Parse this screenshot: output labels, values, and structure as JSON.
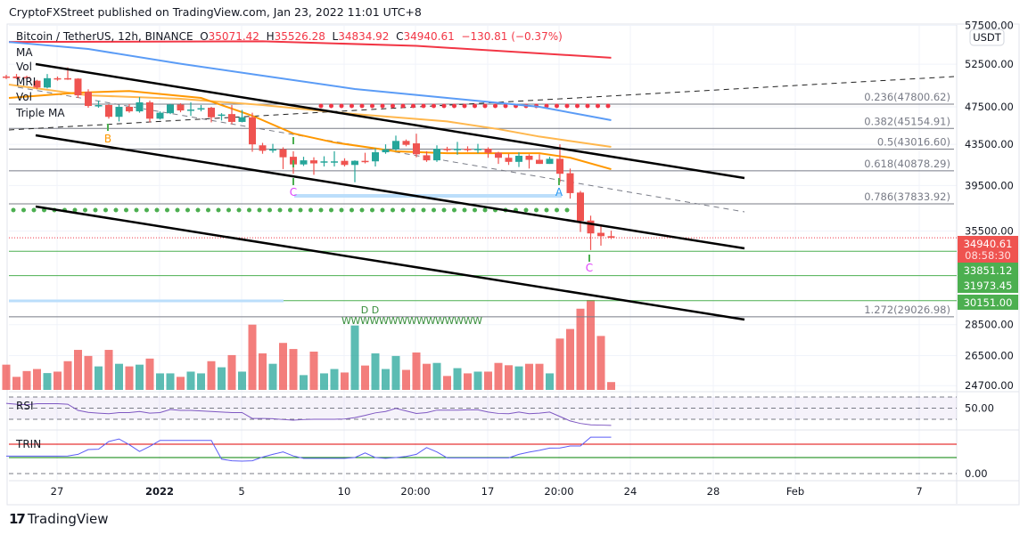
{
  "header": {
    "published": "CryptoFXStreet published on TradingView.com, Jan 23, 2022 11:01 UTC+8",
    "symbol": "Bitcoin / TetherUS, 12h, BINANCE",
    "open_label": "O",
    "open": "35071.42",
    "high_label": "H",
    "high": "35526.28",
    "low_label": "L",
    "low": "34834.92",
    "close_label": "C",
    "close": "34940.61",
    "change": "−130.81 (−0.37%)"
  },
  "legend": [
    "MA",
    "Vol",
    "MRI",
    "Vol",
    "Triple MA"
  ],
  "rsi_label": "RSI",
  "trin_label": "TRIN",
  "currency": "USDT",
  "footer": {
    "brand": "TradingView",
    "logo_icon": "tradingview-logo-icon"
  },
  "colors": {
    "up": "#26a69a",
    "down": "#ef5350",
    "ma_red": "#f23645",
    "ma_blue": "#5b9cf6",
    "ma_orange": "#ff9800",
    "ma_yellow": "#ffb74d",
    "rsi": "#7e57c2",
    "trin": "#5b5cf6",
    "level_green": "#4caf50"
  },
  "chart_data": {
    "type": "candlestick",
    "price_scale": "log",
    "y_ticks": [
      "57500.00",
      "52500.00",
      "47500.00",
      "43500.00",
      "39500.00",
      "35500.00",
      "28500.00",
      "26500.00",
      "24700.00"
    ],
    "y_tick_values": [
      57500,
      52500,
      47500,
      43500,
      39500,
      35500,
      28500,
      26500,
      24700
    ],
    "x_ticks": [
      "27",
      "2022",
      "5",
      "10",
      "20:00",
      "17",
      "20:00",
      "24",
      "28",
      "Feb",
      "7"
    ],
    "candles": [
      [
        51000,
        51200,
        50700,
        50850
      ],
      [
        51000,
        51300,
        50700,
        50800
      ],
      [
        50950,
        51100,
        50600,
        50850
      ],
      [
        50500,
        50600,
        49500,
        49700
      ],
      [
        49700,
        51300,
        49600,
        50800
      ],
      [
        50800,
        51000,
        50500,
        50750
      ],
      [
        50800,
        52100,
        50600,
        50700
      ],
      [
        50750,
        50800,
        48500,
        48800
      ],
      [
        49200,
        49500,
        47400,
        47600
      ],
      [
        47550,
        48200,
        47400,
        47700
      ],
      [
        47700,
        47800,
        46200,
        46400
      ],
      [
        46400,
        47700,
        45900,
        47500
      ],
      [
        47500,
        47800,
        46850,
        47000
      ],
      [
        47000,
        48600,
        46850,
        48000
      ],
      [
        48000,
        48200,
        45800,
        46200
      ],
      [
        46200,
        47000,
        46100,
        46850
      ],
      [
        46800,
        47850,
        46700,
        47750
      ],
      [
        47750,
        47900,
        46900,
        47100
      ],
      [
        47150,
        48000,
        46500,
        47200
      ],
      [
        47300,
        47700,
        47000,
        47350
      ],
      [
        47400,
        47500,
        45800,
        46350
      ],
      [
        46550,
        46800,
        46000,
        46650
      ],
      [
        46700,
        47700,
        45600,
        45850
      ],
      [
        45850,
        47150,
        45800,
        46350
      ],
      [
        46350,
        46850,
        42750,
        43500
      ],
      [
        43400,
        43650,
        42550,
        42850
      ],
      [
        42900,
        43550,
        42650,
        43000
      ],
      [
        43000,
        43200,
        41050,
        42200
      ],
      [
        42250,
        42800,
        40600,
        41500
      ],
      [
        41500,
        42250,
        41350,
        41900
      ],
      [
        41900,
        42200,
        40500,
        41600
      ],
      [
        41750,
        42300,
        41300,
        41800
      ],
      [
        41750,
        42800,
        41300,
        41800
      ],
      [
        41850,
        42100,
        41300,
        41450
      ],
      [
        41450,
        41900,
        39800,
        41850
      ],
      [
        41850,
        42650,
        41600,
        41800
      ],
      [
        41800,
        43100,
        41300,
        42700
      ],
      [
        42700,
        43500,
        42550,
        43000
      ],
      [
        43000,
        44400,
        42850,
        43850
      ],
      [
        43850,
        44000,
        43300,
        43450
      ],
      [
        43600,
        44600,
        42200,
        42500
      ],
      [
        42400,
        42800,
        41750,
        41900
      ],
      [
        41900,
        43400,
        41750,
        43050
      ],
      [
        43050,
        43250,
        42750,
        43000
      ],
      [
        43000,
        43750,
        42450,
        43050
      ],
      [
        43050,
        43300,
        42750,
        43000
      ],
      [
        43000,
        43550,
        42600,
        43050
      ],
      [
        43050,
        43200,
        42150,
        42650
      ],
      [
        42650,
        42750,
        41550,
        42150
      ],
      [
        42150,
        42550,
        41450,
        41750
      ],
      [
        41750,
        42700,
        41250,
        42350
      ],
      [
        42350,
        42500,
        41100,
        41950
      ],
      [
        41950,
        42500,
        41550,
        41550
      ],
      [
        41550,
        42250,
        41550,
        42050
      ],
      [
        42050,
        43500,
        39800,
        40600
      ],
      [
        40650,
        41100,
        38300,
        38800
      ],
      [
        38850,
        39000,
        35420,
        36350
      ],
      [
        36380,
        36800,
        33950,
        35300
      ],
      [
        35350,
        36050,
        34300,
        35071.42
      ],
      [
        35071.42,
        35526.28,
        34834.92,
        34940.61
      ]
    ],
    "candle_fields": [
      "open",
      "high",
      "low",
      "close"
    ],
    "volume_relative": [
      87,
      45,
      65,
      72,
      58,
      63,
      99,
      138,
      117,
      81,
      138,
      90,
      81,
      87,
      108,
      57,
      57,
      45,
      63,
      57,
      99,
      78,
      120,
      63,
      225,
      126,
      90,
      162,
      141,
      51,
      132,
      57,
      72,
      60,
      222,
      84,
      126,
      72,
      117,
      69,
      129,
      90,
      93,
      48,
      75,
      57,
      63,
      63,
      93,
      85,
      81,
      90,
      90,
      57,
      177,
      210,
      280,
      310,
      186,
      27
    ],
    "rsi": [
      58.6,
      57,
      56,
      58,
      58,
      58,
      57,
      46,
      42.4,
      41,
      40,
      42,
      42,
      44,
      41,
      42,
      47.5,
      46,
      46,
      45,
      44,
      43,
      42,
      42,
      31.5,
      31.5,
      31,
      29.5,
      28.5,
      29.5,
      30,
      30,
      30,
      30.5,
      33,
      37,
      41.5,
      44,
      49.5,
      45,
      40.5,
      42,
      46.5,
      46.5,
      46.5,
      47,
      47,
      43,
      40.5,
      40,
      43,
      40,
      41,
      43,
      35,
      27,
      22.5,
      20,
      19.5,
      19
    ],
    "rsi_levels": [
      70,
      50,
      30
    ],
    "rsi_tick": "50.00",
    "trin": [
      1.09,
      1.09,
      1.09,
      1.09,
      1.09,
      1.09,
      1.1,
      1.2,
      1.5,
      1.52,
      2.0,
      2.16,
      1.8,
      1.38,
      1.7,
      2.07,
      2.07,
      2.07,
      2.07,
      2.07,
      2.07,
      0.9,
      0.8,
      0.78,
      0.8,
      1.03,
      1.2,
      1.35,
      1.1,
      0.95,
      0.95,
      0.95,
      0.95,
      0.95,
      1.0,
      1.29,
      1.0,
      0.95,
      1.0,
      1.07,
      1.2,
      1.62,
      1.35,
      0.98,
      0.98,
      0.98,
      0.98,
      0.98,
      0.98,
      0.98,
      1.2,
      1.34,
      1.45,
      1.59,
      1.6,
      1.72,
      1.72,
      2.27,
      2.27,
      2.27
    ],
    "trin_tick": "0.00",
    "moving_averages": [
      {
        "color": "#f23645",
        "points": [
          [
            0,
            55300
          ],
          [
            25,
            55400
          ],
          [
            40,
            54800
          ],
          [
            59,
            53300
          ]
        ]
      },
      {
        "color": "#5b9cf6",
        "points": [
          [
            0,
            55300
          ],
          [
            8,
            54400
          ],
          [
            17,
            52550
          ],
          [
            25,
            51100
          ],
          [
            34,
            49530
          ],
          [
            43,
            48500
          ],
          [
            52,
            47500
          ],
          [
            59,
            46040
          ]
        ]
      },
      {
        "color": "#ffb74d",
        "points": [
          [
            0,
            50050
          ],
          [
            8,
            48800
          ],
          [
            17,
            48400
          ],
          [
            25,
            47700
          ],
          [
            34,
            46700
          ],
          [
            43,
            45900
          ],
          [
            48,
            45080
          ],
          [
            52,
            44300
          ],
          [
            59,
            43240
          ]
        ]
      },
      {
        "color": "#ff9800",
        "points": [
          [
            0,
            48500
          ],
          [
            7,
            49100
          ],
          [
            12,
            49300
          ],
          [
            19,
            48500
          ],
          [
            24,
            46520
          ],
          [
            28,
            44620
          ],
          [
            32,
            43690
          ],
          [
            38,
            42790
          ],
          [
            43,
            42600
          ],
          [
            52,
            42600
          ],
          [
            55,
            42160
          ],
          [
            59,
            41040
          ]
        ]
      }
    ],
    "fib_levels": [
      {
        "label": "0.236(47800.62)",
        "price": 47800.62
      },
      {
        "label": "0.382(45154.91)",
        "price": 45154.91
      },
      {
        "label": "0.5(43016.60)",
        "price": 43016.6
      },
      {
        "label": "0.618(40878.29)",
        "price": 40878.29
      },
      {
        "label": "0.786(37833.92)",
        "price": 37833.92
      },
      {
        "label": "1.272(29026.98)",
        "price": 29026.98
      }
    ],
    "price_tags": [
      {
        "value": "34940.61",
        "sub": "08:58:30",
        "price": 34940.61,
        "color": "#ef5350"
      },
      {
        "value": "33851.12",
        "price": 33851.12,
        "color": "#4caf50"
      },
      {
        "value": "31973.45",
        "price": 31973.45,
        "color": "#4caf50"
      },
      {
        "value": "30151.00",
        "price": 30151.0,
        "color": "#4caf50"
      }
    ],
    "pattern_labels": [
      {
        "text": "B",
        "color": "#ff9800"
      },
      {
        "text": "C",
        "color": "#e040fb"
      },
      {
        "text": "A",
        "color": "#2196f3"
      },
      {
        "text": "C",
        "color": "#e040fb"
      },
      {
        "text": "D D",
        "color": "#388e3c"
      },
      {
        "text": "WWWWWWWWWWWWWWW",
        "color": "#388e3c"
      }
    ]
  }
}
